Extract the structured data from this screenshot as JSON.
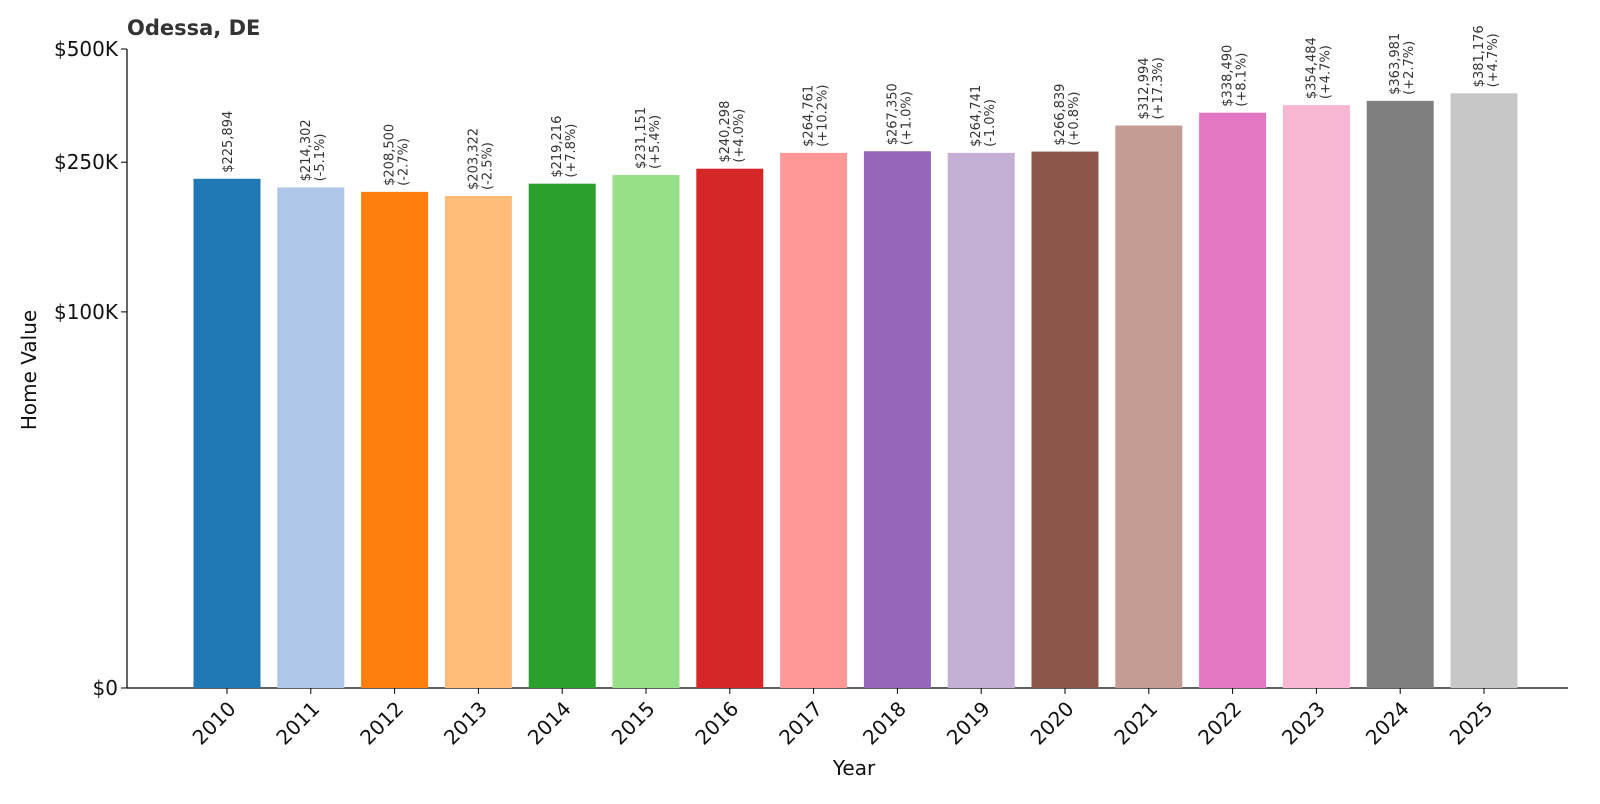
{
  "chart_data": {
    "type": "bar",
    "title": "Odessa, DE",
    "xlabel": "Year",
    "ylabel": "Home Value",
    "categories": [
      "2010",
      "2011",
      "2012",
      "2013",
      "2014",
      "2015",
      "2016",
      "2017",
      "2018",
      "2019",
      "2020",
      "2021",
      "2022",
      "2023",
      "2024",
      "2025"
    ],
    "values": [
      225894,
      214302,
      208500,
      203322,
      219216,
      231151,
      240298,
      264761,
      267350,
      264741,
      266839,
      312994,
      338490,
      354484,
      363981,
      381176
    ],
    "value_labels": [
      "$225,894",
      "$214,302",
      "$208,500",
      "$203,322",
      "$219,216",
      "$231,151",
      "$240,298",
      "$264,761",
      "$267,350",
      "$264,741",
      "$266,839",
      "$312,994",
      "$338,490",
      "$354,484",
      "$363,981",
      "$381,176"
    ],
    "change_labels": [
      "",
      "(-5.1%)",
      "(-2.7%)",
      "(-2.5%)",
      "(+7.8%)",
      "(+5.4%)",
      "(+4.0%)",
      "(+10.2%)",
      "(+1.0%)",
      "(-1.0%)",
      "(+0.8%)",
      "(+17.3%)",
      "(+8.1%)",
      "(+4.7%)",
      "(+2.7%)",
      "(+4.7%)"
    ],
    "colors": [
      "#1f77b4",
      "#aec7e8",
      "#ff7f0e",
      "#ffbb78",
      "#2ca02c",
      "#98df8a",
      "#d62728",
      "#ff9896",
      "#9467bd",
      "#c5b0d5",
      "#8c564b",
      "#c49c94",
      "#e377c2",
      "#f7b6d2",
      "#7f7f7f",
      "#c7c7c7"
    ],
    "yticks": [
      0,
      100000,
      250000,
      500000
    ],
    "ytick_labels": [
      "$0",
      "$100K",
      "$250K",
      "$500K"
    ],
    "ylim": [
      0,
      500000
    ],
    "yscale": "symlog",
    "grid": false,
    "legend": "none"
  }
}
